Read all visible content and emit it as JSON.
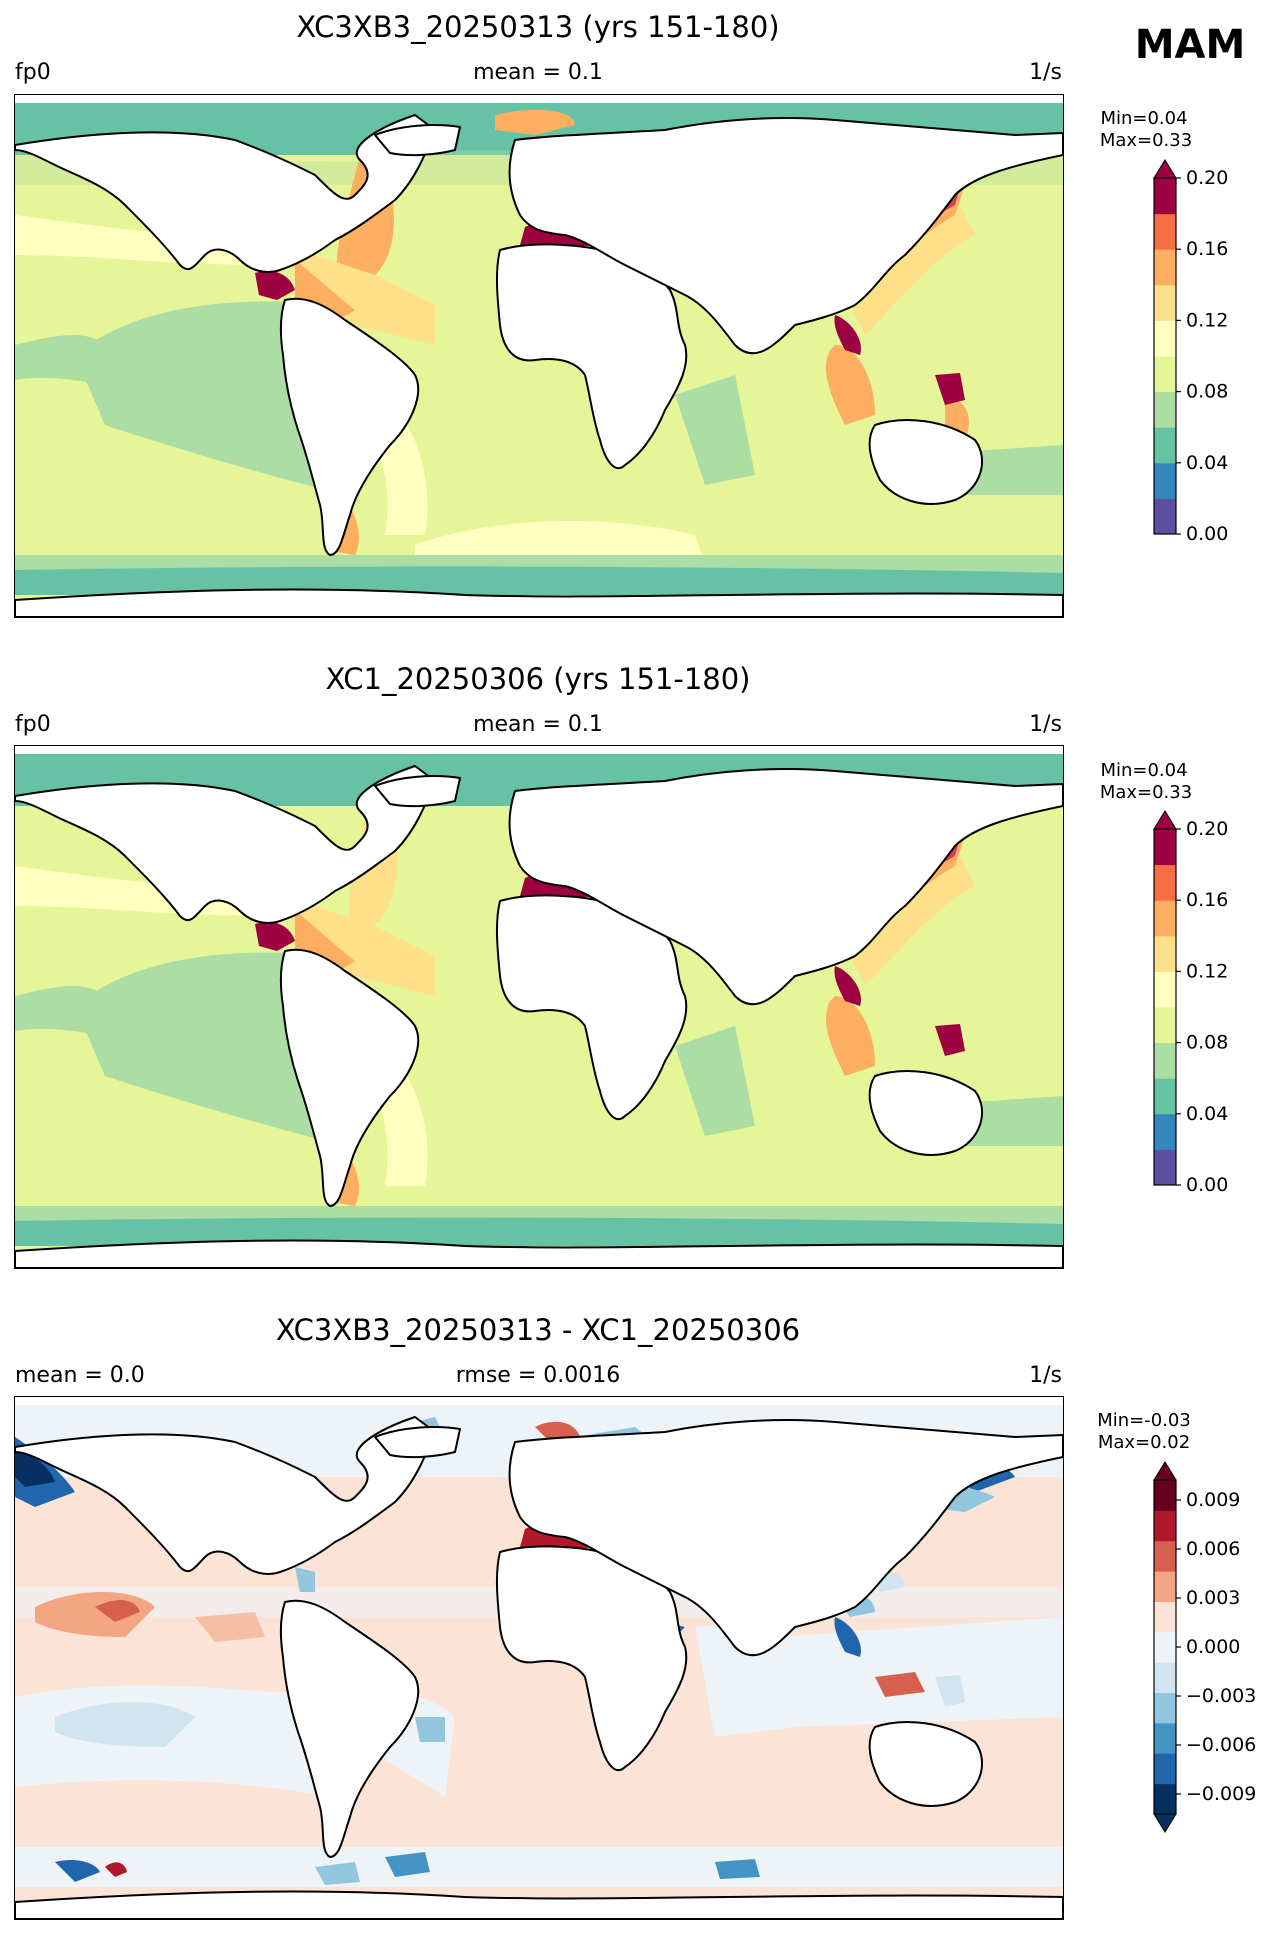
{
  "season": "MAM",
  "panels": [
    {
      "title": "XC3XB3_20250313 (yrs 151-180)",
      "left": "fp0",
      "center": "mean = 0.1",
      "right": "1/s",
      "min_label": "Min=0.04",
      "max_label": "Max=0.33",
      "colorbar": {
        "ticks": [
          "0.00",
          "0.04",
          "0.08",
          "0.12",
          "0.16",
          "0.20"
        ],
        "colors": [
          "#5e4fa2",
          "#3288bd",
          "#66c2a5",
          "#abdda4",
          "#e6f598",
          "#ffffbf",
          "#fee08b",
          "#fdae61",
          "#f46d43",
          "#9e0142"
        ]
      }
    },
    {
      "title": "XC1_20250306 (yrs 151-180)",
      "left": "fp0",
      "center": "mean = 0.1",
      "right": "1/s",
      "min_label": "Min=0.04",
      "max_label": "Max=0.33",
      "colorbar": {
        "ticks": [
          "0.00",
          "0.04",
          "0.08",
          "0.12",
          "0.16",
          "0.20"
        ],
        "colors": [
          "#5e4fa2",
          "#3288bd",
          "#66c2a5",
          "#abdda4",
          "#e6f598",
          "#ffffbf",
          "#fee08b",
          "#fdae61",
          "#f46d43",
          "#9e0142"
        ]
      }
    },
    {
      "title": "XC3XB3_20250313 - XC1_20250306",
      "left": "mean = 0.0",
      "center": "rmse = 0.0016",
      "right": "1/s",
      "min_label": "Min=-0.03",
      "max_label": "Max=0.02",
      "colorbar": {
        "ticks": [
          "0.009",
          "0.006",
          "0.003",
          "0.000",
          "−0.003",
          "−0.006",
          "−0.009"
        ],
        "colors": [
          "#053061",
          "#2166ac",
          "#4393c3",
          "#92c5de",
          "#d1e5f0",
          "#edf3f6",
          "#fbe3d6",
          "#f4a582",
          "#d6604d",
          "#b2182b",
          "#67001f"
        ]
      }
    }
  ]
}
